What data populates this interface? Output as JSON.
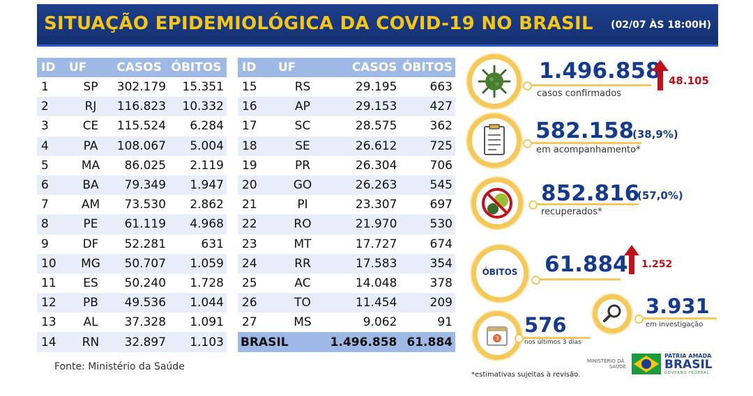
{
  "header": {
    "title": "SITUAÇÃO EPIDEMIOLÓGICA DA COVID-19 NO BRASIL",
    "date": "(02/07 ÀS 18:00H)"
  },
  "table_headers": [
    "ID",
    "UF",
    "CASOS",
    "ÓBITOS"
  ],
  "states_left": [
    {
      "id": "1",
      "uf": "SP",
      "casos": "302.179",
      "obitos": "15.351"
    },
    {
      "id": "2",
      "uf": "RJ",
      "casos": "116.823",
      "obitos": "10.332"
    },
    {
      "id": "3",
      "uf": "CE",
      "casos": "115.524",
      "obitos": "6.284"
    },
    {
      "id": "4",
      "uf": "PA",
      "casos": "108.067",
      "obitos": "5.004"
    },
    {
      "id": "5",
      "uf": "MA",
      "casos": "86.025",
      "obitos": "2.119"
    },
    {
      "id": "6",
      "uf": "BA",
      "casos": "79.349",
      "obitos": "1.947"
    },
    {
      "id": "7",
      "uf": "AM",
      "casos": "73.530",
      "obitos": "2.862"
    },
    {
      "id": "8",
      "uf": "PE",
      "casos": "61.119",
      "obitos": "4.968"
    },
    {
      "id": "9",
      "uf": "DF",
      "casos": "52.281",
      "obitos": "631"
    },
    {
      "id": "10",
      "uf": "MG",
      "casos": "50.707",
      "obitos": "1.059"
    },
    {
      "id": "11",
      "uf": "ES",
      "casos": "50.240",
      "obitos": "1.728"
    },
    {
      "id": "12",
      "uf": "PB",
      "casos": "49.536",
      "obitos": "1.044"
    },
    {
      "id": "13",
      "uf": "AL",
      "casos": "37.328",
      "obitos": "1.091"
    },
    {
      "id": "14",
      "uf": "RN",
      "casos": "32.897",
      "obitos": "1.103"
    }
  ],
  "states_right": [
    {
      "id": "15",
      "uf": "RS",
      "casos": "29.195",
      "obitos": "663"
    },
    {
      "id": "16",
      "uf": "AP",
      "casos": "29.153",
      "obitos": "427"
    },
    {
      "id": "17",
      "uf": "SC",
      "casos": "28.575",
      "obitos": "362"
    },
    {
      "id": "18",
      "uf": "SE",
      "casos": "26.612",
      "obitos": "725"
    },
    {
      "id": "19",
      "uf": "PR",
      "casos": "26.304",
      "obitos": "706"
    },
    {
      "id": "20",
      "uf": "GO",
      "casos": "26.263",
      "obitos": "545"
    },
    {
      "id": "21",
      "uf": "PI",
      "casos": "23.307",
      "obitos": "697"
    },
    {
      "id": "22",
      "uf": "RO",
      "casos": "21.970",
      "obitos": "530"
    },
    {
      "id": "23",
      "uf": "MT",
      "casos": "17.727",
      "obitos": "674"
    },
    {
      "id": "24",
      "uf": "RR",
      "casos": "17.583",
      "obitos": "354"
    },
    {
      "id": "25",
      "uf": "AC",
      "casos": "14.048",
      "obitos": "378"
    },
    {
      "id": "26",
      "uf": "TO",
      "casos": "11.454",
      "obitos": "209"
    },
    {
      "id": "27",
      "uf": "MS",
      "casos": "9.062",
      "obitos": "91"
    }
  ],
  "total": {
    "label": "BRASIL",
    "casos": "1.496.858",
    "obitos": "61.884"
  },
  "source": "Fonte: Ministério da Saúde",
  "stats": {
    "confirmed": {
      "value": "1.496.858",
      "label": "casos confirmados",
      "delta": "48.105"
    },
    "monitoring": {
      "value": "582.158",
      "pct": "(38,9%)",
      "label": "em acompanhamento*"
    },
    "recovered": {
      "value": "852.816",
      "pct": "(57,0%)",
      "label": "recuperados*"
    },
    "deaths": {
      "badge": "ÓBITOS",
      "value": "61.884",
      "delta": "1.252"
    },
    "investigation": {
      "value": "3.931",
      "label": "em investigação"
    },
    "last3days": {
      "value": "576",
      "label": "nos últimos 3 dias",
      "calendar_num": "3"
    }
  },
  "note": "*estimativas sujeitas à revisão.",
  "brand": {
    "ministry": "MINISTÉRIO DA SAÚDE",
    "ministry_line1": "MINISTÉRIO DA",
    "ministry_line2": "SAÚDE",
    "patria": "PÁTRIA AMADA",
    "brasil": "BRASIL",
    "gov": "GOVERNO FEDERAL"
  },
  "colors": {
    "navy": "#163b8c",
    "yellow": "#f5c518",
    "red": "#c0121a",
    "table_header": "#9fb9e7",
    "row_alt": "#e7eefa"
  }
}
